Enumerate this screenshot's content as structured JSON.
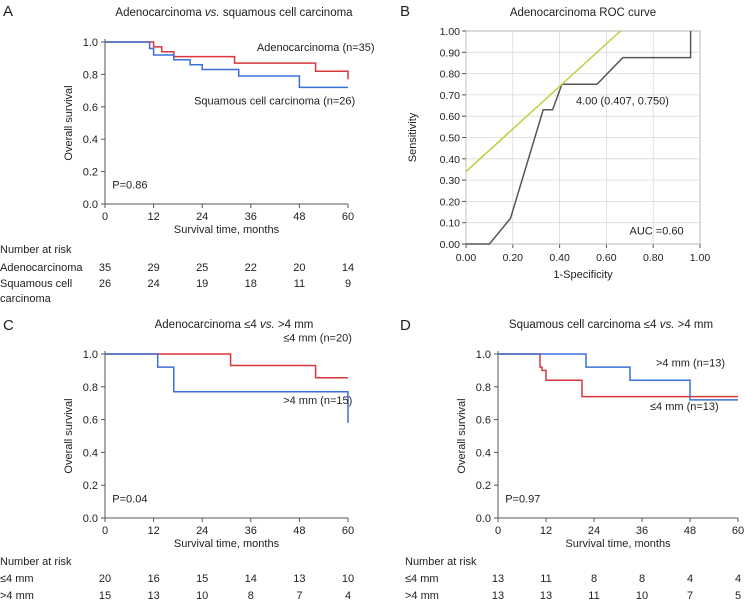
{
  "colors": {
    "red": "#d9363e",
    "blue": "#3a6fd8",
    "roc": "#555555",
    "ref": "#b5d33d",
    "axis": "#555555"
  },
  "chart_data": [
    {
      "id": "A",
      "panel_label": "A",
      "type": "line",
      "title": "Adenocarcinoma vs. squamous cell carcinoma",
      "title_parts": [
        {
          "t": "Adenocarcinoma ",
          "i": false
        },
        {
          "t": "vs.",
          "i": true
        },
        {
          "t": " squamous cell carcinoma",
          "i": false
        }
      ],
      "xlabel": "Survival time, months",
      "ylabel": "Overall survival",
      "xlim": [
        0,
        60
      ],
      "ylim": [
        0,
        1.0
      ],
      "xticks": [
        0,
        12,
        24,
        36,
        48,
        60
      ],
      "yticks": [
        0.0,
        0.2,
        0.4,
        0.6,
        0.8,
        1.0
      ],
      "xtick_labels": [
        "0",
        "12",
        "24",
        "36",
        "48",
        "60"
      ],
      "ytick_labels": [
        "0.0",
        "0.2",
        "0.4",
        "0.6",
        "0.8",
        "1.0"
      ],
      "series": [
        {
          "name": "Adenocarcinoma (n=35)",
          "color": "red",
          "x": [
            0,
            12,
            12,
            14,
            14,
            17,
            17,
            32,
            32,
            52,
            52,
            60,
            60
          ],
          "y": [
            1.0,
            1.0,
            0.97,
            0.97,
            0.94,
            0.94,
            0.91,
            0.91,
            0.87,
            0.87,
            0.82,
            0.82,
            0.77
          ]
        },
        {
          "name": "Squamous cell carcinoma (n=26)",
          "color": "blue",
          "x": [
            0,
            11,
            11,
            12,
            12,
            17,
            17,
            21,
            21,
            24,
            24,
            33,
            33,
            48,
            48,
            60
          ],
          "y": [
            1.0,
            1.0,
            0.96,
            0.96,
            0.92,
            0.92,
            0.89,
            0.89,
            0.86,
            0.86,
            0.83,
            0.83,
            0.79,
            0.79,
            0.72,
            0.72
          ]
        }
      ],
      "annotations": [
        {
          "text": "Adenocarcinoma (n=35)",
          "x": 37.5,
          "y": 0.945,
          "anchor": "start"
        },
        {
          "text": "Squamous cell carcinoma (n=26)",
          "x": 22,
          "y": 0.615,
          "anchor": "start"
        },
        {
          "text": "P=0.86",
          "x": 1.8,
          "y": 0.095,
          "anchor": "start"
        }
      ],
      "risk_table": {
        "header": "Number at risk",
        "rows": [
          {
            "label": "Adenocarcinoma",
            "values": [
              "35",
              "29",
              "25",
              "22",
              "20",
              "14"
            ]
          },
          {
            "label": "Squamous cell",
            "label2": "carcinoma",
            "values": [
              "26",
              "24",
              "19",
              "18",
              "11",
              "9"
            ]
          }
        ]
      }
    },
    {
      "id": "B",
      "panel_label": "B",
      "type": "line",
      "title": "Adenocarcinoma ROC curve",
      "title_parts": [
        {
          "t": "Adenocarcinoma ROC curve",
          "i": false
        }
      ],
      "xlabel": "1-Specificity",
      "ylabel": "Sensitivity",
      "xlim": [
        0,
        1
      ],
      "ylim": [
        0,
        1
      ],
      "xticks": [
        0,
        0.2,
        0.4,
        0.6,
        0.8,
        1.0
      ],
      "xtick_labels": [
        "0.00",
        "0.20",
        "0.40",
        "0.60",
        "0.80",
        "1.00"
      ],
      "yticks": [
        0,
        0.1,
        0.2,
        0.3,
        0.4,
        0.5,
        0.6,
        0.7,
        0.8,
        0.9,
        1.0
      ],
      "ytick_labels": [
        "0.00",
        "0.10",
        "0.20",
        "0.30",
        "0.40",
        "0.50",
        "0.60",
        "0.70",
        "0.80",
        "0.90",
        "1.00"
      ],
      "grid": true,
      "series": [
        {
          "name": "ROC",
          "color": "roc",
          "x": [
            0,
            0.1,
            0.19,
            0.33,
            0.37,
            0.41,
            0.56,
            0.67,
            0.96,
            0.96
          ],
          "y": [
            0,
            0,
            0.12,
            0.63,
            0.63,
            0.75,
            0.75,
            0.875,
            0.875,
            1.0
          ]
        },
        {
          "name": "Reference",
          "color": "ref",
          "x": [
            0,
            0.66
          ],
          "y": [
            0.34,
            1.0
          ]
        }
      ],
      "annotations": [
        {
          "text": "4.00 (0.407, 0.750)",
          "x": 0.47,
          "y": 0.655,
          "anchor": "start"
        },
        {
          "text": "AUC =0.60",
          "x": 0.93,
          "y": 0.045,
          "anchor": "end"
        }
      ]
    },
    {
      "id": "C",
      "panel_label": "C",
      "type": "line",
      "title": "Adenocarcinoma ≤4 vs. >4 mm",
      "title_parts": [
        {
          "t": "Adenocarcinoma ≤4 ",
          "i": false
        },
        {
          "t": "vs.",
          "i": true
        },
        {
          "t": " >4 mm",
          "i": false
        }
      ],
      "xlabel": "Survival time, months",
      "ylabel": "Overall survival",
      "xlim": [
        0,
        60
      ],
      "ylim": [
        0,
        1.0
      ],
      "xticks": [
        0,
        12,
        24,
        36,
        48,
        60
      ],
      "yticks": [
        0.0,
        0.2,
        0.4,
        0.6,
        0.8,
        1.0
      ],
      "xtick_labels": [
        "0",
        "12",
        "24",
        "36",
        "48",
        "60"
      ],
      "ytick_labels": [
        "0.0",
        "0.2",
        "0.4",
        "0.6",
        "0.8",
        "1.0"
      ],
      "series": [
        {
          "name": "≤4 mm (n=20)",
          "color": "red",
          "x": [
            0,
            31,
            31,
            52,
            52,
            60
          ],
          "y": [
            1.0,
            1.0,
            0.93,
            0.93,
            0.855,
            0.855
          ]
        },
        {
          "name": ">4 mm (n=15)",
          "color": "blue",
          "x": [
            0,
            13,
            13,
            17,
            17,
            60,
            60
          ],
          "y": [
            1.0,
            1.0,
            0.92,
            0.92,
            0.77,
            0.77,
            0.58
          ]
        }
      ],
      "annotations": [
        {
          "text": "≤4 mm (n=20)",
          "x": 44,
          "y": 1.075,
          "anchor": "start"
        },
        {
          "text": ">4 mm (n=15)",
          "x": 44,
          "y": 0.695,
          "anchor": "start"
        },
        {
          "text": "P=0.04",
          "x": 1.8,
          "y": 0.095,
          "anchor": "start"
        }
      ],
      "risk_table": {
        "header": "Number at risk",
        "rows": [
          {
            "label": "≤4 mm",
            "values": [
              "20",
              "16",
              "15",
              "14",
              "13",
              "10"
            ]
          },
          {
            "label": ">4 mm",
            "values": [
              "15",
              "13",
              "10",
              "8",
              "7",
              "4"
            ]
          }
        ]
      }
    },
    {
      "id": "D",
      "panel_label": "D",
      "type": "line",
      "title": "Squamous cell carcinoma ≤4 vs. >4 mm",
      "title_parts": [
        {
          "t": "Squamous cell carcinoma ≤4 ",
          "i": false
        },
        {
          "t": "vs.",
          "i": true
        },
        {
          "t": " >4 mm",
          "i": false
        }
      ],
      "xlabel": "Survival time, months",
      "ylabel": "Overall survival",
      "xlim": [
        0,
        60
      ],
      "ylim": [
        0,
        1.0
      ],
      "xticks": [
        0,
        12,
        24,
        36,
        48,
        60
      ],
      "yticks": [
        0.0,
        0.2,
        0.4,
        0.6,
        0.8,
        1.0
      ],
      "xtick_labels": [
        "0",
        "12",
        "24",
        "36",
        "48",
        "60"
      ],
      "ytick_labels": [
        "0.0",
        "0.2",
        "0.4",
        "0.6",
        "0.8",
        "1.0"
      ],
      "series": [
        {
          "name": "≤4 mm (n=13)",
          "color": "red",
          "x": [
            0,
            10.5,
            10.5,
            11,
            11,
            12,
            12,
            21,
            21,
            60
          ],
          "y": [
            1.0,
            1.0,
            0.92,
            0.92,
            0.9,
            0.9,
            0.84,
            0.84,
            0.74,
            0.74
          ]
        },
        {
          "name": ">4 mm (n=13)",
          "color": "blue",
          "x": [
            0,
            22,
            22,
            33,
            33,
            48,
            48,
            60
          ],
          "y": [
            1.0,
            1.0,
            0.92,
            0.92,
            0.84,
            0.84,
            0.72,
            0.72
          ]
        }
      ],
      "annotations": [
        {
          "text": ">4 mm (n=13)",
          "x": 39.5,
          "y": 0.925,
          "anchor": "start"
        },
        {
          "text": "≤4 mm (n=13)",
          "x": 38,
          "y": 0.66,
          "anchor": "start"
        },
        {
          "text": "P=0.97",
          "x": 1.8,
          "y": 0.095,
          "anchor": "start"
        }
      ],
      "risk_table": {
        "header": "Number at risk",
        "rows": [
          {
            "label": "≤4 mm",
            "values": [
              "13",
              "11",
              "8",
              "8",
              "4",
              "4"
            ]
          },
          {
            "label": ">4 mm",
            "values": [
              "13",
              "13",
              "11",
              "10",
              "7",
              "5"
            ]
          }
        ]
      }
    }
  ]
}
